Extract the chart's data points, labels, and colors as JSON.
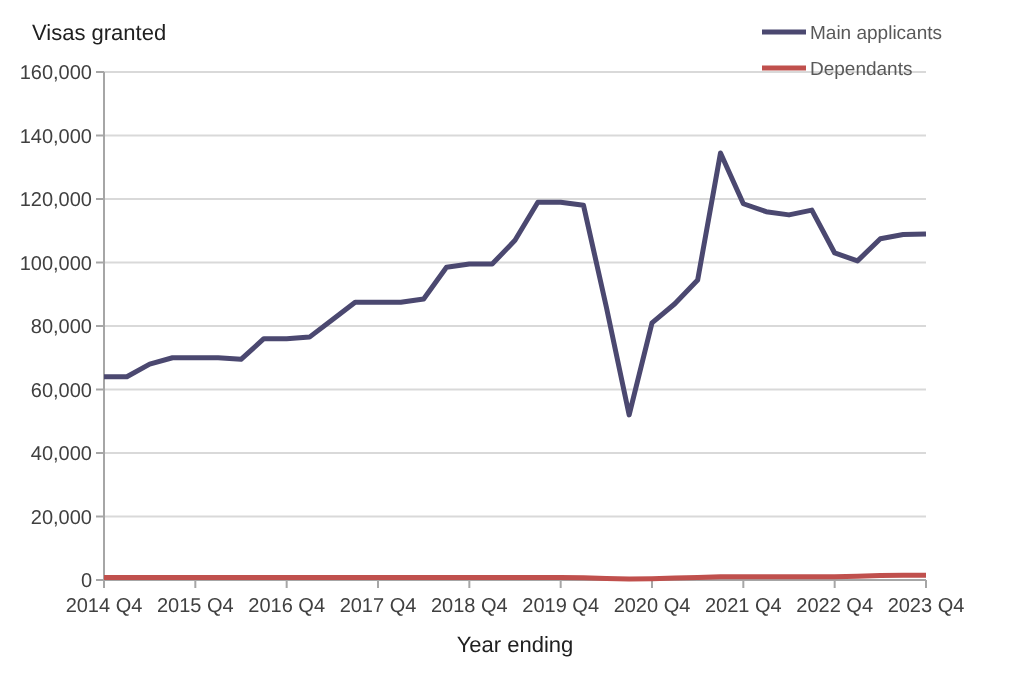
{
  "chart_data": {
    "type": "line",
    "ylabel": "Visas granted",
    "xlabel": "Year ending",
    "categories": [
      "2014 Q4",
      null,
      null,
      null,
      "2015 Q4",
      null,
      null,
      null,
      "2016 Q4",
      null,
      null,
      null,
      "2017 Q4",
      null,
      null,
      null,
      "2018 Q4",
      null,
      null,
      null,
      "2019 Q4",
      null,
      null,
      null,
      "2020 Q4",
      null,
      null,
      null,
      "2021 Q4",
      null,
      null,
      null,
      "2022 Q4",
      null,
      null,
      null,
      "2023 Q4"
    ],
    "series": [
      {
        "name": "Main applicants",
        "color": "#4b4870",
        "values": [
          64000,
          64000,
          68000,
          70000,
          70000,
          70000,
          69500,
          76000,
          76000,
          76500,
          82000,
          87500,
          87500,
          87500,
          88500,
          98500,
          99500,
          99500,
          107000,
          119000,
          119000,
          118000,
          86000,
          52000,
          81000,
          87000,
          94500,
          134500,
          118500,
          116000,
          115000,
          116500,
          103000,
          100500,
          107500,
          108800,
          109000
        ]
      },
      {
        "name": "Dependants",
        "color": "#c0504d",
        "values": [
          800,
          800,
          800,
          800,
          800,
          800,
          800,
          800,
          800,
          800,
          800,
          800,
          800,
          800,
          800,
          800,
          800,
          800,
          800,
          800,
          800,
          700,
          500,
          300,
          400,
          600,
          800,
          1000,
          1000,
          1000,
          1000,
          1000,
          1000,
          1200,
          1400,
          1500,
          1500
        ]
      }
    ],
    "ylim": [
      0,
      160000
    ],
    "yticks": [
      {
        "value": 0,
        "label": "0"
      },
      {
        "value": 20000,
        "label": "20,000"
      },
      {
        "value": 40000,
        "label": "40,000"
      },
      {
        "value": 60000,
        "label": "60,000"
      },
      {
        "value": 80000,
        "label": "80,000"
      },
      {
        "value": 100000,
        "label": "100,000"
      },
      {
        "value": 120000,
        "label": "120,000"
      },
      {
        "value": 140000,
        "label": "140,000"
      },
      {
        "value": 160000,
        "label": "160,000"
      }
    ],
    "grid": "y",
    "legend": "top right",
    "marker": "none",
    "line_style": "solid"
  }
}
